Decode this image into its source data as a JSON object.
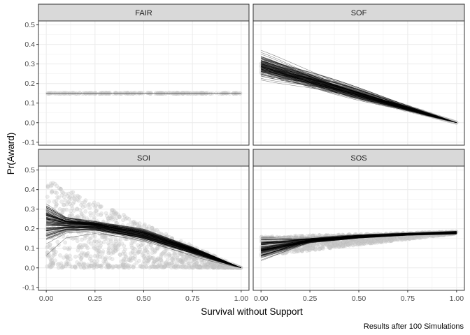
{
  "chart_data": {
    "type": "scatter",
    "xlabel": "Survival without Support",
    "ylabel": "Pr(Award)",
    "caption": "Results after 100 Simulations",
    "xlim": [
      -0.04,
      1.04
    ],
    "ylim": [
      -0.115,
      0.52
    ],
    "x_ticks": [
      0,
      0.25,
      0.5,
      0.75,
      1
    ],
    "x_tick_labels": [
      "0.00",
      "0.25",
      "0.50",
      "0.75",
      "1.00"
    ],
    "y_ticks": [
      -0.1,
      0,
      0.1,
      0.2,
      0.3,
      0.4,
      0.5
    ],
    "y_tick_labels": [
      "-0.1",
      "0.0",
      "0.1",
      "0.2",
      "0.3",
      "0.4",
      "0.5"
    ],
    "grid": true,
    "simulations": 100,
    "panels": [
      {
        "name": "FAIR",
        "point_cloud": {
          "x_range": [
            0,
            1
          ],
          "y_center": [
            0.15,
            0.15
          ],
          "y_spread": [
            0.002,
            0.002
          ]
        },
        "fit": {
          "x": [
            0,
            0.25,
            0.5,
            0.75,
            1
          ],
          "y": [
            0.15,
            0.15,
            0.15,
            0.15,
            0.15
          ],
          "y_spread": [
            0.0,
            0.0,
            0.0,
            0.0,
            0.0
          ]
        }
      },
      {
        "name": "SOF",
        "point_cloud": {
          "x_range": [
            0,
            1
          ],
          "y_center": [
            0.29,
            0.0
          ],
          "y_spread": [
            0.04,
            0.0
          ]
        },
        "fit": {
          "x": [
            0,
            0.25,
            0.5,
            0.75,
            1
          ],
          "y": [
            0.29,
            0.218,
            0.145,
            0.073,
            0.0
          ],
          "y_spread": [
            0.04,
            0.03,
            0.02,
            0.01,
            0.0
          ]
        }
      },
      {
        "name": "SOI",
        "point_cloud": {
          "x_range": [
            0,
            1
          ],
          "y_center": [
            0.2,
            0.0
          ],
          "y_spread": [
            0.2,
            0.0
          ]
        },
        "fit": {
          "x": [
            0,
            0.1,
            0.25,
            0.5,
            0.75,
            1
          ],
          "y": [
            0.24,
            0.225,
            0.215,
            0.17,
            0.09,
            0.0
          ],
          "y_spread": [
            0.07,
            0.03,
            0.02,
            0.02,
            0.015,
            0.0
          ]
        }
      },
      {
        "name": "SOS",
        "point_cloud": {
          "x_range": [
            0,
            1
          ],
          "y_center": [
            0.11,
            0.18
          ],
          "y_spread": [
            0.05,
            0.005
          ]
        },
        "fit": {
          "x": [
            0,
            0.25,
            0.5,
            0.75,
            1
          ],
          "y": [
            0.1,
            0.14,
            0.16,
            0.172,
            0.18
          ],
          "y_spread": [
            0.04,
            0.01,
            0.006,
            0.005,
            0.005
          ]
        }
      }
    ]
  }
}
